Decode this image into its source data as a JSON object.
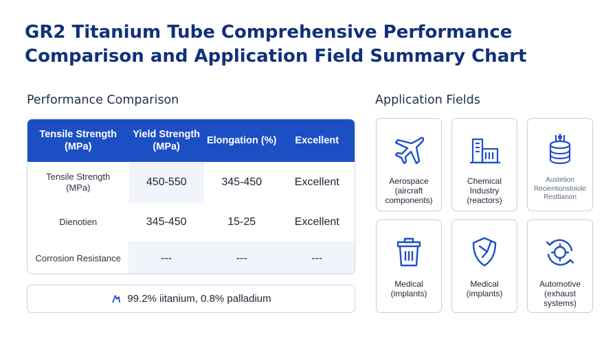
{
  "title": "GR2 Titanium Tube Comprehensive Performance Comparison and Application Field Summary Chart",
  "performance": {
    "section_title": "Performance Comparison",
    "headers": [
      "Tensile Strength (MPa)",
      "Yield Strength (MPa)",
      "Elongation (%)",
      "Excellent"
    ],
    "rows": [
      {
        "label": "Tensile Strength (MPa)",
        "values": [
          "450-550",
          "345-450",
          "Excellent"
        ]
      },
      {
        "label": "Dienotien",
        "values": [
          "345-450",
          "15-25",
          "Excellent"
        ]
      },
      {
        "label": "Corrosion Resistance",
        "values": [
          "---",
          "---",
          "---"
        ]
      }
    ],
    "composition": "99.2% iitanium, 0.8% palladium",
    "colors": {
      "header_bg": "#1d4fc4",
      "title": "#12307a"
    }
  },
  "applications": {
    "section_title": "Application Fields",
    "cards": [
      {
        "icon": "airplane-icon",
        "label": "Aerospace (aircraft components)"
      },
      {
        "icon": "factory-icon",
        "label": "Chemical Industry (reactors)"
      },
      {
        "icon": "database-icon",
        "label": "Austetion Recientionstoiole Resttianon"
      },
      {
        "icon": "trash-bin-icon",
        "label": "Medical (implants)"
      },
      {
        "icon": "shield-icon",
        "label": "Medical (implants)"
      },
      {
        "icon": "gear-cycle-icon",
        "label": "Automotive (exhaust systems)"
      }
    ]
  }
}
